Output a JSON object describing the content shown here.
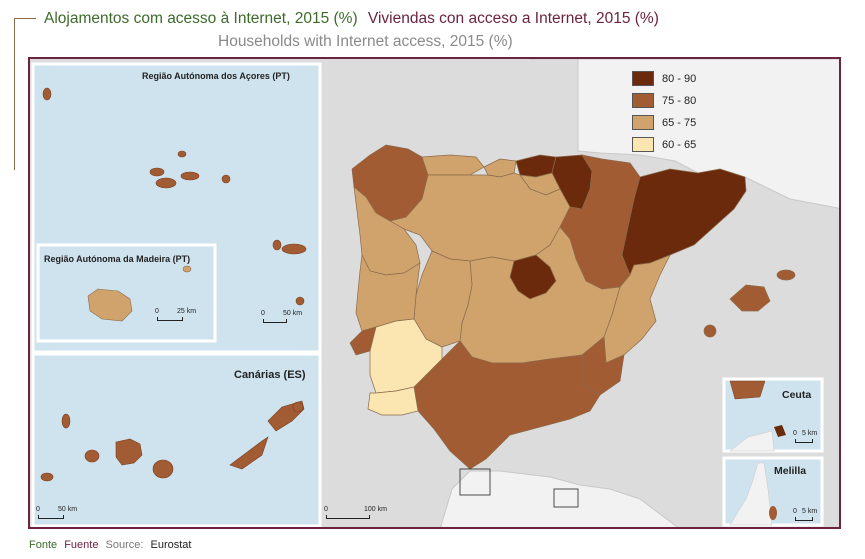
{
  "titles": {
    "pt": "Alojamentos com acesso à Internet, 2015 (%)",
    "es": "Viviendas con acceso a Internet, 2015 (%)",
    "en": "Households with Internet access, 2015 (%)"
  },
  "legend": {
    "classes": [
      {
        "label": "80 - 90",
        "color": "#6b2a0c"
      },
      {
        "label": "75 - 80",
        "color": "#a25c34"
      },
      {
        "label": "65 - 75",
        "color": "#d0a36c"
      },
      {
        "label": "60 - 65",
        "color": "#fbe6b2"
      }
    ]
  },
  "insets": {
    "azores": {
      "label": "Região Autónoma dos Açores (PT)",
      "scale": "50 km",
      "scale_zero": "0"
    },
    "madeira": {
      "label": "Região Autónoma da Madeira (PT)",
      "scale": "25 km",
      "scale_zero": "0"
    },
    "canarias": {
      "label": "Canárias (ES)",
      "scale": "50 km",
      "scale_zero": "0"
    },
    "ceuta": {
      "label": "Ceuta",
      "scale": "5 km",
      "scale_zero": "0"
    },
    "melilla": {
      "label": "Melilla",
      "scale": "5 km",
      "scale_zero": "0"
    }
  },
  "main_scale": {
    "label": "100 km",
    "zero": "0"
  },
  "source": {
    "pt": "Fonte",
    "es": "Fuente",
    "en": "Source:",
    "value": "Eurostat"
  },
  "colors": {
    "class_80_90": "#6b2a0c",
    "class_75_80": "#a25c34",
    "class_65_75": "#d0a36c",
    "class_60_65": "#fbe6b2",
    "sea": "#dcdcdc",
    "inset_bg": "#cfe3ef",
    "frame": "#6b2340",
    "neighbour_land": "#f2f2f2"
  }
}
